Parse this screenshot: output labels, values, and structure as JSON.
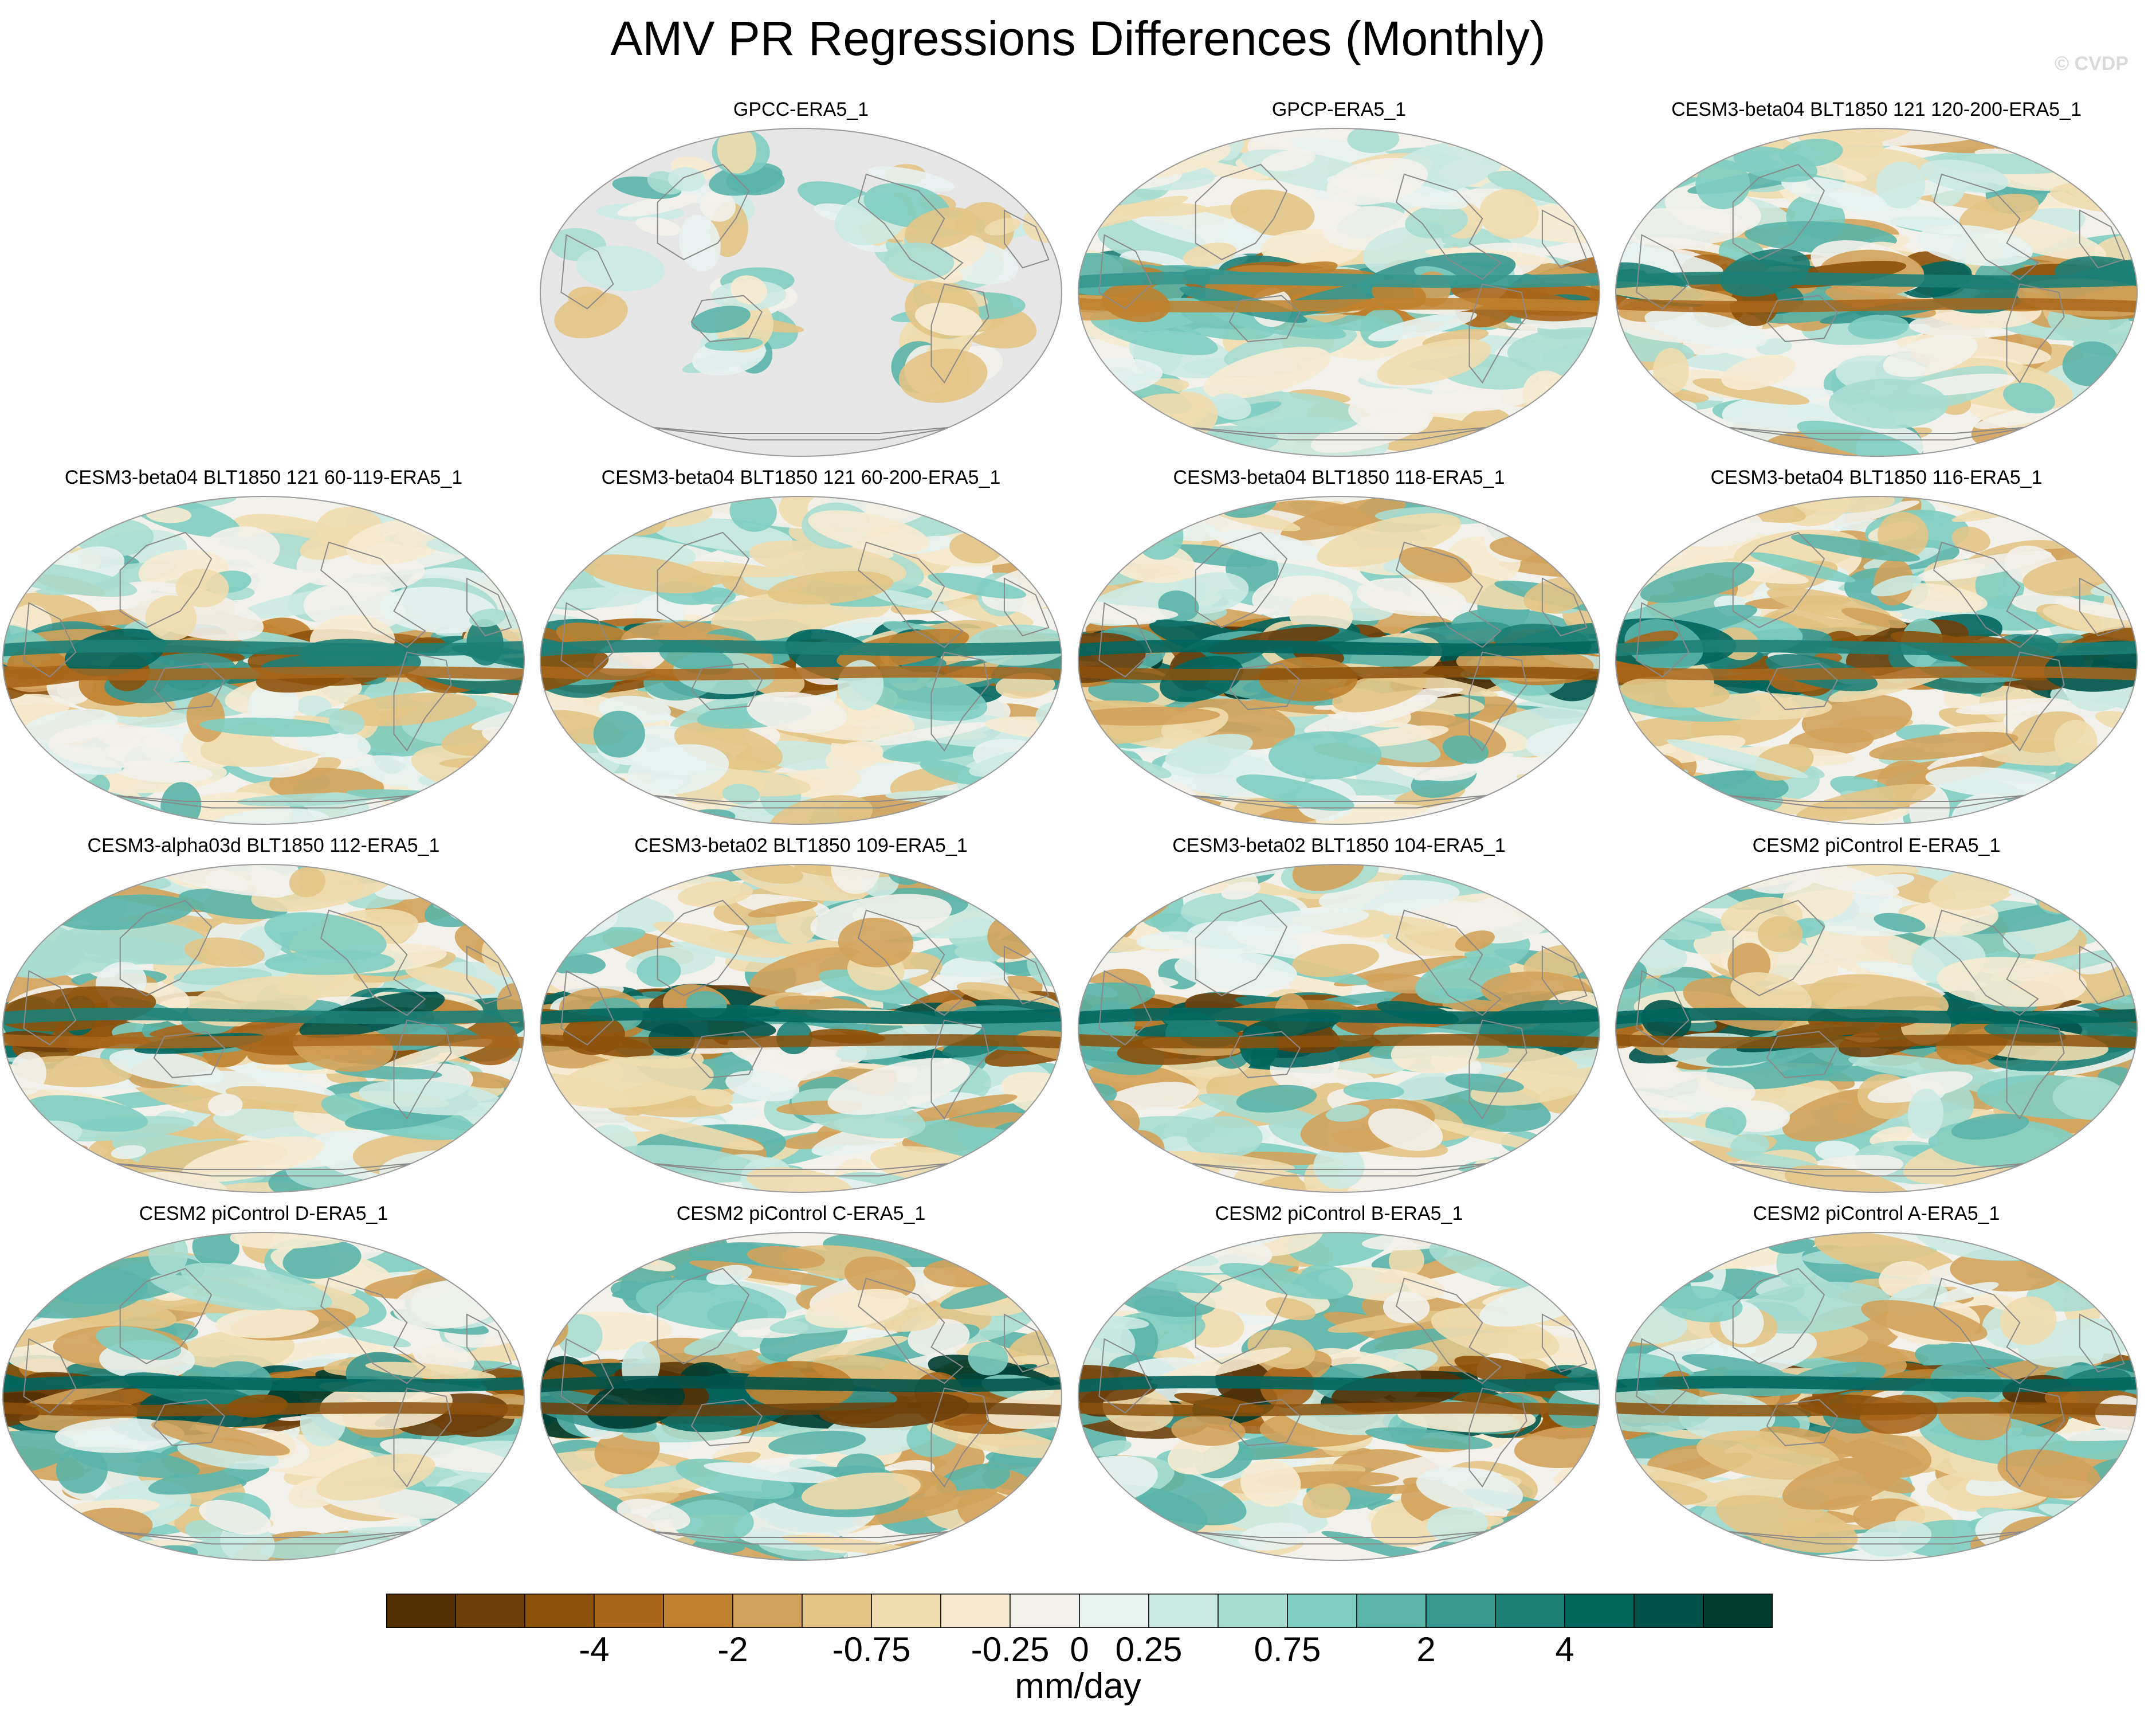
{
  "title": "AMV PR Regressions Differences (Monthly)",
  "watermark": "© CVDP",
  "chart_data": {
    "type": "heatmap",
    "title": "AMV PR Regressions Differences (Monthly)",
    "variable": "PR regression difference",
    "units": "mm/day",
    "colorbar": {
      "levels": [
        -6,
        -5,
        -4,
        -3,
        -2,
        -1,
        -0.75,
        -0.5,
        -0.25,
        0,
        0.25,
        0.5,
        0.75,
        1,
        2,
        3,
        4,
        5,
        6
      ],
      "tick_labels": [
        "-4",
        "-2",
        "-0.75",
        "-0.25",
        "0",
        "0.25",
        "0.75",
        "2",
        "4"
      ],
      "tick_values": [
        -4,
        -2,
        -0.75,
        -0.25,
        0,
        0.25,
        0.75,
        2,
        4
      ],
      "colors": [
        "#543005",
        "#6f3f0b",
        "#8c510a",
        "#a9661b",
        "#bf812d",
        "#d3a25a",
        "#e3c486",
        "#f0dcae",
        "#f6ebd0",
        "#f3f1eb",
        "#e8f2ef",
        "#cbeae3",
        "#a8ddd2",
        "#80cdc1",
        "#5ab4a8",
        "#35978f",
        "#1d8076",
        "#01665e",
        "#01534a",
        "#003c30"
      ]
    },
    "panels": [
      {
        "label": "GPCC-ERA5_1",
        "row": 0,
        "col": 1,
        "land_only": true,
        "seed": 3
      },
      {
        "label": "GPCP-ERA5_1",
        "row": 0,
        "col": 2,
        "intensity": 0.8,
        "seed": 5
      },
      {
        "label": "CESM3-beta04 BLT1850 121 120-200-ERA5_1",
        "row": 0,
        "col": 3,
        "intensity": 1.0,
        "seed": 7
      },
      {
        "label": "CESM3-beta04 BLT1850 121 60-119-ERA5_1",
        "row": 1,
        "col": 0,
        "intensity": 1.0,
        "seed": 11
      },
      {
        "label": "CESM3-beta04 BLT1850 121 60-200-ERA5_1",
        "row": 1,
        "col": 1,
        "intensity": 1.0,
        "seed": 13
      },
      {
        "label": "CESM3-beta04 BLT1850 118-ERA5_1",
        "row": 1,
        "col": 2,
        "intensity": 1.3,
        "seed": 17
      },
      {
        "label": "CESM3-beta04 BLT1850 116-ERA5_1",
        "row": 1,
        "col": 3,
        "intensity": 1.1,
        "seed": 19
      },
      {
        "label": "CESM3-alpha03d BLT1850 112-ERA5_1",
        "row": 2,
        "col": 0,
        "intensity": 1.1,
        "seed": 23
      },
      {
        "label": "CESM3-beta02 BLT1850 109-ERA5_1",
        "row": 2,
        "col": 1,
        "intensity": 1.2,
        "seed": 29
      },
      {
        "label": "CESM3-beta02 BLT1850 104-ERA5_1",
        "row": 2,
        "col": 2,
        "intensity": 1.2,
        "seed": 31
      },
      {
        "label": "CESM2 piControl E-ERA5_1",
        "row": 2,
        "col": 3,
        "intensity": 1.2,
        "seed": 37
      },
      {
        "label": "CESM2 piControl D-ERA5_1",
        "row": 3,
        "col": 0,
        "intensity": 1.3,
        "seed": 41
      },
      {
        "label": "CESM2 piControl C-ERA5_1",
        "row": 3,
        "col": 1,
        "intensity": 1.5,
        "seed": 43
      },
      {
        "label": "CESM2 piControl B-ERA5_1",
        "row": 3,
        "col": 2,
        "intensity": 1.4,
        "seed": 47
      },
      {
        "label": "CESM2 piControl A-ERA5_1",
        "row": 3,
        "col": 3,
        "intensity": 1.3,
        "seed": 53
      }
    ]
  }
}
